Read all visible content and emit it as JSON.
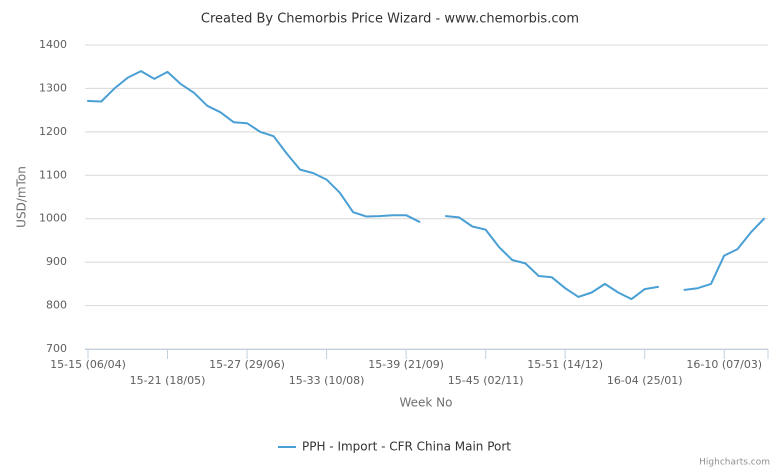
{
  "chart_data": {
    "type": "line",
    "title": "Created By Chemorbis Price Wizard - www.chemorbis.com",
    "x_label": "Week No",
    "y_label": "USD/mTon",
    "credits": "Highcharts.com",
    "categories": [
      "15-15 (06/04)",
      null,
      null,
      null,
      null,
      null,
      "15-21 (18/05)",
      null,
      null,
      null,
      null,
      null,
      "15-27 (29/06)",
      null,
      null,
      null,
      null,
      null,
      "15-33 (10/08)",
      null,
      null,
      null,
      null,
      null,
      "15-39 (21/09)",
      null,
      null,
      null,
      null,
      null,
      "15-45 (02/11)",
      null,
      null,
      null,
      null,
      null,
      "15-51 (14/12)",
      null,
      null,
      null,
      null,
      null,
      "16-04 (25/01)",
      null,
      null,
      null,
      null,
      null,
      "16-10 (07/03)",
      null,
      null,
      null
    ],
    "series": [
      {
        "name": "PPH - Import - CFR China Main Port",
        "color": "#4a9fd5",
        "values": [
          1271,
          1270,
          1300,
          1325,
          1340,
          1322,
          1338,
          1310,
          1290,
          1260,
          1245,
          1222,
          1220,
          1200,
          1190,
          1150,
          1113,
          1105,
          1090,
          1060,
          1015,
          1005,
          1006,
          1008,
          1008,
          993,
          null,
          1006,
          1003,
          982,
          975,
          935,
          905,
          897,
          868,
          865,
          840,
          820,
          830,
          850,
          830,
          815,
          838,
          843,
          null,
          836,
          840,
          850,
          915,
          930,
          968,
          1000
        ]
      }
    ],
    "ylim": [
      700,
      1400
    ],
    "yticks": [
      700,
      800,
      900,
      1000,
      1100,
      1200,
      1300,
      1400
    ],
    "grid": true
  }
}
